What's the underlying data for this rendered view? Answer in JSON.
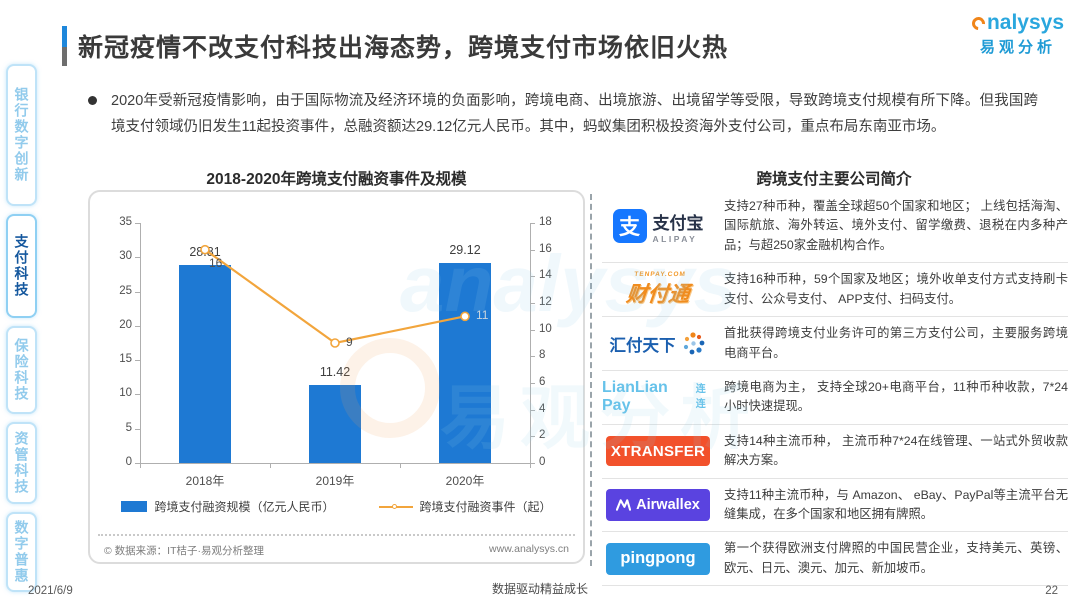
{
  "header": {
    "title": "新冠疫情不改支付科技出海态势，跨境支付市场依旧火热",
    "brand": "analysys",
    "brand_rest": "nalysys",
    "brand_cn": "易观分析"
  },
  "sidebar": {
    "items": [
      {
        "label": "银行数字创新",
        "active": false
      },
      {
        "label": "支付科技",
        "active": true
      },
      {
        "label": "保险科技",
        "active": false
      },
      {
        "label": "资管科技",
        "active": false
      },
      {
        "label": "数字普惠",
        "active": false
      }
    ]
  },
  "summary": {
    "bullet": "2020年受新冠疫情影响，由于国际物流及经济环境的负面影响，跨境电商、出境旅游、出境留学等受限，导致跨境支付规模有所下降。但我国跨境支付领域仍旧发生11起投资事件，总融资额达29.12亿元人民币。其中，蚂蚁集团积极投资海外支付公司，重点布局东南亚市场。"
  },
  "chart": {
    "title": "2018-2020年跨境支付融资事件及规模",
    "source_left": "© 数据来源：IT桔子·易观分析整理",
    "source_right": "www.analysys.cn"
  },
  "chart_data": {
    "type": "bar",
    "subtype": "bar+line dual axis",
    "title": "2018-2020年跨境支付融资事件及规模",
    "categories": [
      "2018年",
      "2019年",
      "2020年"
    ],
    "series": [
      {
        "name": "跨境支付融资规模（亿元人民币）",
        "type": "bar",
        "axis": "left",
        "values": [
          28.81,
          11.42,
          29.12
        ],
        "color": "#1E79D3"
      },
      {
        "name": "跨境支付融资事件（起）",
        "type": "line",
        "axis": "right",
        "values": [
          16,
          9,
          11
        ],
        "color": "#F2A53C"
      }
    ],
    "left_axis": {
      "min": 0,
      "max": 35,
      "step": 5
    },
    "right_axis": {
      "min": 0,
      "max": 18,
      "step": 2
    },
    "grid": false,
    "legend_position": "bottom"
  },
  "companies": {
    "title": "跨境支付主要公司简介",
    "logos": {
      "alipay": {
        "glyph": "支",
        "name": "支付宝",
        "sub": "ALIPAY"
      },
      "tenpay": {
        "sub": "TENPAY.COM",
        "name": "财付通"
      },
      "huifu": {
        "name": "汇付天下"
      },
      "lianlian": {
        "name": "LianLian Pay",
        "sub": "连连"
      },
      "xtransfer": {
        "name": "XTRANSFER"
      },
      "airwallex": {
        "name": "Airwallex"
      },
      "pingpong": {
        "name": "pingpong"
      }
    },
    "rows": [
      {
        "company": "alipay",
        "desc": "支持27种币种，覆盖全球超50个国家和地区； 上线包括海淘、国际航旅、海外转运、境外支付、留学缴费、退税在内多种产品；与超250家金融机构合作。"
      },
      {
        "company": "tenpay",
        "desc": "支持16种币种，59个国家及地区；境外收单支付方式支持刷卡支付、公众号支付、 APP支付、扫码支付。"
      },
      {
        "company": "huifu",
        "desc": "首批获得跨境支付业务许可的第三方支付公司，主要服务跨境电商平台。"
      },
      {
        "company": "lianlian",
        "desc": "跨境电商为主， 支持全球20+电商平台，11种币种收款，7*24 小时快速提现。"
      },
      {
        "company": "xtransfer",
        "desc": "支持14种主流币种， 主流币种7*24在线管理、一站式外贸收款解决方案。"
      },
      {
        "company": "airwallex",
        "desc": "支持11种主流币种，与 Amazon、 eBay、PayPal等主流平台无缝集成，在多个国家和地区拥有牌照。"
      },
      {
        "company": "pingpong",
        "desc": "第一个获得欧洲支付牌照的中国民营企业，支持美元、英镑、欧元、日元、澳元、加元、新加坡币。"
      }
    ]
  },
  "watermark": {
    "text_en": "analysys",
    "text_cn": "易观分析"
  },
  "footer": {
    "date": "2021/6/9",
    "slogan": "数据驱动精益成长",
    "page_number": "22"
  }
}
